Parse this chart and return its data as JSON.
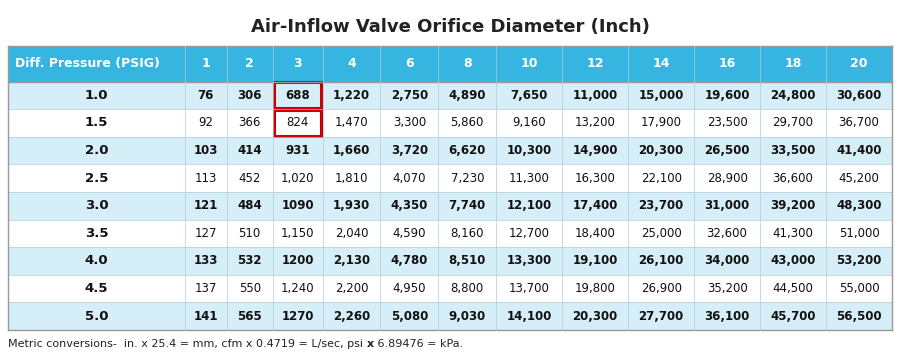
{
  "title": "Air-Inflow Valve Orifice Diameter (Inch)",
  "col_headers": [
    "Diff. Pressure (PSIG)",
    "1",
    "2",
    "3",
    "4",
    "6",
    "8",
    "10",
    "12",
    "14",
    "16",
    "18",
    "20"
  ],
  "rows": [
    [
      "1.0",
      "76",
      "306",
      "688",
      "1,220",
      "2,750",
      "4,890",
      "7,650",
      "11,000",
      "15,000",
      "19,600",
      "24,800",
      "30,600"
    ],
    [
      "1.5",
      "92",
      "366",
      "824",
      "1,470",
      "3,300",
      "5,860",
      "9,160",
      "13,200",
      "17,900",
      "23,500",
      "29,700",
      "36,700"
    ],
    [
      "2.0",
      "103",
      "414",
      "931",
      "1,660",
      "3,720",
      "6,620",
      "10,300",
      "14,900",
      "20,300",
      "26,500",
      "33,500",
      "41,400"
    ],
    [
      "2.5",
      "113",
      "452",
      "1,020",
      "1,810",
      "4,070",
      "7,230",
      "11,300",
      "16,300",
      "22,100",
      "28,900",
      "36,600",
      "45,200"
    ],
    [
      "3.0",
      "121",
      "484",
      "1090",
      "1,930",
      "4,350",
      "7,740",
      "12,100",
      "17,400",
      "23,700",
      "31,000",
      "39,200",
      "48,300"
    ],
    [
      "3.5",
      "127",
      "510",
      "1,150",
      "2,040",
      "4,590",
      "8,160",
      "12,700",
      "18,400",
      "25,000",
      "32,600",
      "41,300",
      "51,000"
    ],
    [
      "4.0",
      "133",
      "532",
      "1200",
      "2,130",
      "4,780",
      "8,510",
      "13,300",
      "19,100",
      "26,100",
      "34,000",
      "43,000",
      "53,200"
    ],
    [
      "4.5",
      "137",
      "550",
      "1,240",
      "2,200",
      "4,950",
      "8,800",
      "13,700",
      "19,800",
      "26,900",
      "35,200",
      "44,500",
      "55,000"
    ],
    [
      "5.0",
      "141",
      "565",
      "1270",
      "2,260",
      "5,080",
      "9,030",
      "14,100",
      "20,300",
      "27,700",
      "36,100",
      "45,700",
      "56,500"
    ]
  ],
  "footer_parts": [
    {
      "text": "Metric conversions-  in. x 25.4 = mm, cfm x 0.4719 = L/sec, psi ",
      "bold": false
    },
    {
      "text": "x",
      "bold": true
    },
    {
      "text": " 6.89476 = kPa.",
      "bold": false
    }
  ],
  "header_bg": "#35b5e0",
  "header_text": "#ffffff",
  "row_bg_odd": "#d6eef8",
  "row_bg_even": "#ffffff",
  "title_color": "#222222",
  "highlight_col": 3,
  "highlight_rows": [
    0,
    1
  ],
  "highlight_color": "#cc0000",
  "col_widths": [
    2.2,
    0.52,
    0.57,
    0.62,
    0.72,
    0.72,
    0.72,
    0.82,
    0.82,
    0.82,
    0.82,
    0.82,
    0.82
  ],
  "bold_data_rows": [
    0,
    2,
    4,
    6,
    8
  ],
  "title_fontsize": 13,
  "header_fontsize": 9,
  "data_fontsize": 8.5,
  "footer_fontsize": 8
}
